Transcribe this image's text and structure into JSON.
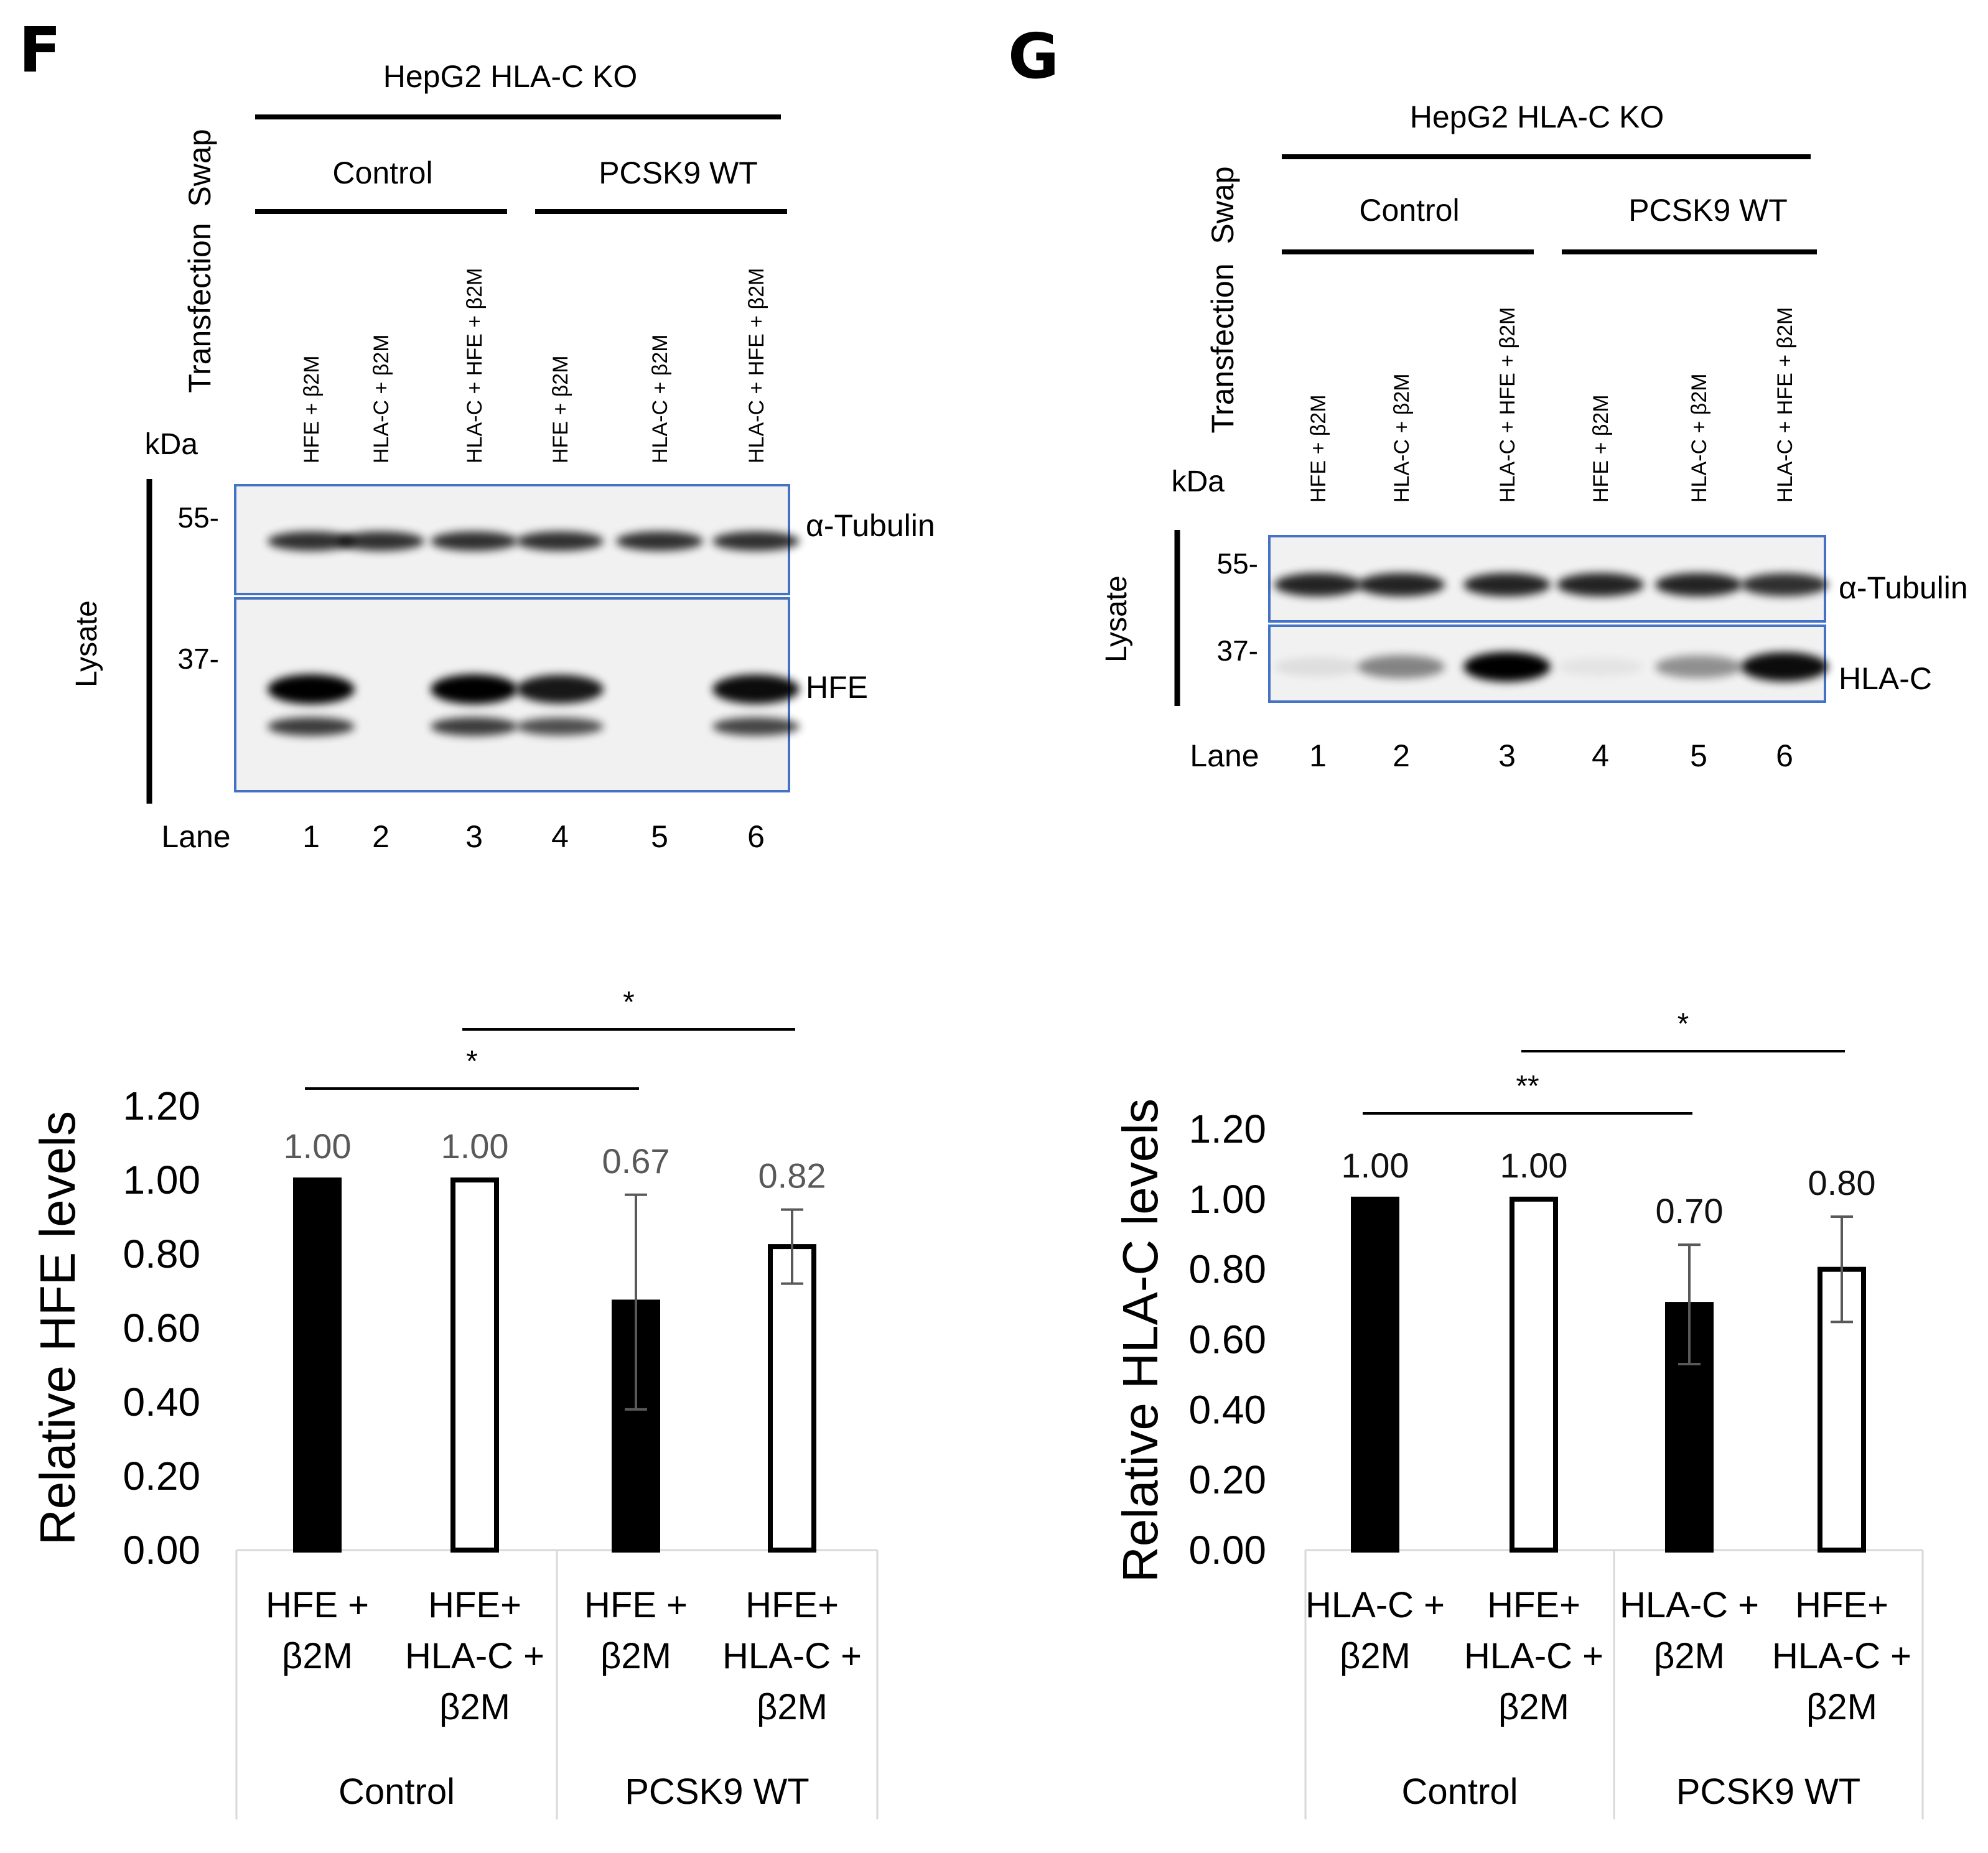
{
  "panels": [
    {
      "letter": "F",
      "cell_line": "HepG2 HLA-C KO",
      "swap_label": "Swap",
      "transfection_label": "Transfection",
      "kda_label": "kDa",
      "lysate_label": "Lysate",
      "lane_label": "Lane",
      "groups": [
        "Control",
        "PCSK9 WT"
      ],
      "lanes": [
        {
          "number": "1",
          "transfection": "HFE + β2M"
        },
        {
          "number": "2",
          "transfection": "HLA-C + β2M"
        },
        {
          "number": "3",
          "transfection": "HLA-C + HFE + β2M"
        },
        {
          "number": "4",
          "transfection": "HFE + β2M"
        },
        {
          "number": "5",
          "transfection": "HLA-C + β2M"
        },
        {
          "number": "6",
          "transfection": "HLA-C + HFE + β2M"
        }
      ],
      "blots": [
        {
          "marker": "55-",
          "protein": "α-Tubulin",
          "band_intensity": [
            0.8,
            0.8,
            0.8,
            0.8,
            0.8,
            0.8
          ]
        },
        {
          "marker": "37-",
          "protein": "HFE",
          "band_intensity": [
            1.0,
            0,
            1.0,
            0.9,
            0,
            0.95
          ]
        }
      ]
    },
    {
      "letter": "G",
      "cell_line": "HepG2 HLA-C KO",
      "swap_label": "Swap",
      "transfection_label": "Transfection",
      "kda_label": "kDa",
      "lysate_label": "Lysate",
      "lane_label": "Lane",
      "groups": [
        "Control",
        "PCSK9 WT"
      ],
      "lanes": [
        {
          "number": "1",
          "transfection": "HFE + β2M"
        },
        {
          "number": "2",
          "transfection": "HLA-C + β2M"
        },
        {
          "number": "3",
          "transfection": "HLA-C + HFE + β2M"
        },
        {
          "number": "4",
          "transfection": "HFE + β2M"
        },
        {
          "number": "5",
          "transfection": "HLA-C + β2M"
        },
        {
          "number": "6",
          "transfection": "HLA-C + HFE + β2M"
        }
      ],
      "blots": [
        {
          "marker": "55-",
          "protein": "α-Tubulin",
          "band_intensity": [
            0.85,
            0.85,
            0.85,
            0.85,
            0.85,
            0.8
          ]
        },
        {
          "marker": "37-",
          "protein": "HLA-C",
          "band_intensity": [
            0.08,
            0.45,
            1.0,
            0.05,
            0.4,
            0.95
          ]
        }
      ]
    }
  ],
  "chart_data": [
    {
      "type": "bar",
      "ylabel": "Relative HFE levels",
      "ylim": [
        0,
        1.2
      ],
      "yticks": [
        "0.00",
        "0.20",
        "0.40",
        "0.60",
        "0.80",
        "1.00",
        "1.20"
      ],
      "categories": [
        [
          "HFE +",
          "β2M"
        ],
        [
          "HFE+",
          "HLA-C +",
          "β2M"
        ],
        [
          "HFE +",
          "β2M"
        ],
        [
          "HFE+",
          "HLA-C +",
          "β2M"
        ]
      ],
      "groups": [
        "Control",
        "PCSK9 WT"
      ],
      "values": [
        1.0,
        1.0,
        0.67,
        0.82
      ],
      "value_labels": [
        "1.00",
        "1.00",
        "0.67",
        "0.82"
      ],
      "errors": [
        0,
        0,
        0.29,
        0.1
      ],
      "fills": [
        "#000000",
        "#ffffff",
        "#000000",
        "#ffffff"
      ],
      "value_label_color": "#595959",
      "significance": [
        {
          "from": 0,
          "to": 2,
          "label": "*"
        },
        {
          "from": 1,
          "to": 3,
          "label": "*"
        }
      ]
    },
    {
      "type": "bar",
      "ylabel": "Relative HLA-C levels",
      "ylim": [
        0,
        1.2
      ],
      "yticks": [
        "0.00",
        "0.20",
        "0.40",
        "0.60",
        "0.80",
        "1.00",
        "1.20"
      ],
      "categories": [
        [
          "HLA-C +",
          "β2M"
        ],
        [
          "HFE+",
          "HLA-C +",
          "β2M"
        ],
        [
          "HLA-C +",
          "β2M"
        ],
        [
          "HFE+",
          "HLA-C +",
          "β2M"
        ]
      ],
      "groups": [
        "Control",
        "PCSK9 WT"
      ],
      "values": [
        1.0,
        1.0,
        0.7,
        0.8
      ],
      "value_labels": [
        "1.00",
        "1.00",
        "0.70",
        "0.80"
      ],
      "errors": [
        0,
        0,
        0.17,
        0.15
      ],
      "fills": [
        "#000000",
        "#ffffff",
        "#000000",
        "#ffffff"
      ],
      "value_label_color": "#111111",
      "significance": [
        {
          "from": 0,
          "to": 2,
          "label": "**"
        },
        {
          "from": 1,
          "to": 3,
          "label": "*"
        }
      ]
    }
  ]
}
